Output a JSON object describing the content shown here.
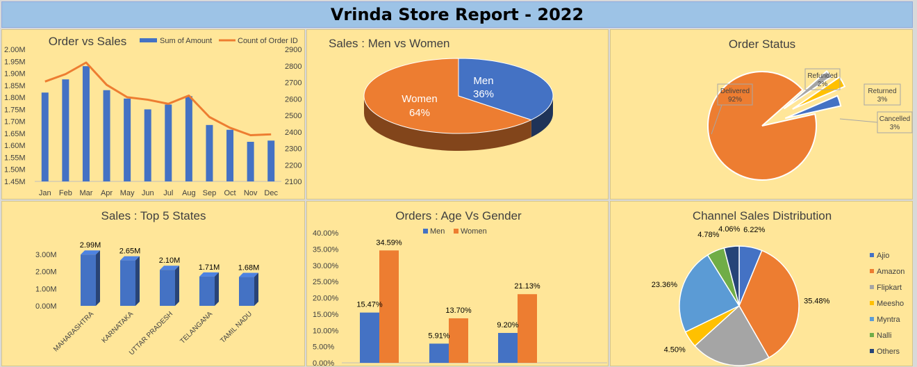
{
  "report_title": "Vrinda Store Report - 2022",
  "colors": {
    "blue": "#4472c4",
    "orange": "#ed7d31",
    "gray": "#a5a5a5",
    "yellow": "#ffc000",
    "lightblue": "#5b9bd5",
    "green": "#70ad47",
    "navy": "#264478",
    "panel": "#ffe699"
  },
  "chart_data": [
    {
      "id": "order_vs_sales",
      "type": "bar",
      "title": "Order vs Sales",
      "categories": [
        "Jan",
        "Feb",
        "Mar",
        "Apr",
        "May",
        "Jun",
        "Jul",
        "Aug",
        "Sep",
        "Oct",
        "Nov",
        "Dec"
      ],
      "series": [
        {
          "name": "Sum of Amount",
          "type": "bar",
          "axis": "left",
          "values": [
            1.82,
            1.875,
            1.93,
            1.83,
            1.795,
            1.75,
            1.77,
            1.805,
            1.685,
            1.665,
            1.615,
            1.62
          ]
        },
        {
          "name": "Count of Order ID",
          "type": "line",
          "axis": "right",
          "values": [
            2705,
            2750,
            2820,
            2685,
            2610,
            2595,
            2570,
            2620,
            2490,
            2425,
            2380,
            2385
          ]
        }
      ],
      "y_left_ticks": [
        "2.00M",
        "1.95M",
        "1.90M",
        "1.85M",
        "1.80M",
        "1.75M",
        "1.70M",
        "1.65M",
        "1.60M",
        "1.55M",
        "1.50M",
        "1.45M"
      ],
      "y_left_range": [
        1.45,
        2.0
      ],
      "y_right_ticks": [
        "2900",
        "2800",
        "2700",
        "2600",
        "2500",
        "2400",
        "2300",
        "2200",
        "2100"
      ],
      "y_right_range": [
        2100,
        2900
      ]
    },
    {
      "id": "men_vs_women",
      "type": "pie",
      "title": "Sales : Men vs Women",
      "labels": [
        "Men",
        "Women"
      ],
      "values": [
        36,
        64
      ],
      "value_labels": [
        "36%",
        "64%"
      ]
    },
    {
      "id": "order_status",
      "type": "pie",
      "title": "Order Status",
      "labels": [
        "Delivered",
        "Refunded",
        "Returned",
        "Cancelled"
      ],
      "values": [
        92,
        2,
        3,
        3
      ],
      "value_labels": [
        "92%",
        "2%",
        "3%",
        "3%"
      ]
    },
    {
      "id": "top_states",
      "type": "bar",
      "title": "Sales : Top 5 States",
      "categories": [
        "MAHARASHTRA",
        "KARNATAKA",
        "UTTAR PRADESH",
        "TELANGANA",
        "TAMIL NADU"
      ],
      "values": [
        2.99,
        2.65,
        2.1,
        1.71,
        1.68
      ],
      "value_labels": [
        "2.99M",
        "2.65M",
        "2.10M",
        "1.71M",
        "1.68M"
      ],
      "y_ticks": [
        "3.00M",
        "2.00M",
        "1.00M",
        "0.00M"
      ],
      "ylim": [
        0,
        3
      ]
    },
    {
      "id": "age_vs_gender",
      "type": "bar",
      "title": "Orders : Age Vs Gender",
      "categories": [
        "",
        "",
        ""
      ],
      "series": [
        {
          "name": "Men",
          "values": [
            15.47,
            5.91,
            9.2
          ],
          "value_labels": [
            "15.47%",
            "5.91%",
            "9.20%"
          ]
        },
        {
          "name": "Women",
          "values": [
            34.59,
            13.7,
            21.13
          ],
          "value_labels": [
            "34.59%",
            "13.70%",
            "21.13%"
          ]
        }
      ],
      "y_ticks": [
        "40.00%",
        "35.00%",
        "30.00%",
        "25.00%",
        "20.00%",
        "15.00%",
        "10.00%",
        "5.00%",
        "0.00%"
      ],
      "ylim": [
        0,
        40
      ]
    },
    {
      "id": "channel_sales",
      "type": "pie",
      "title": "Channel Sales Distribution",
      "labels": [
        "Ajio",
        "Amazon",
        "Flipkart",
        "Meesho",
        "Myntra",
        "Nalli",
        "Others"
      ],
      "values": [
        6.22,
        35.48,
        21.6,
        4.5,
        23.36,
        4.78,
        4.06
      ],
      "value_labels": [
        "6.22%",
        "35.48%",
        "",
        "4.50%",
        "23.36%",
        "4.78%",
        "4.06%"
      ]
    }
  ]
}
